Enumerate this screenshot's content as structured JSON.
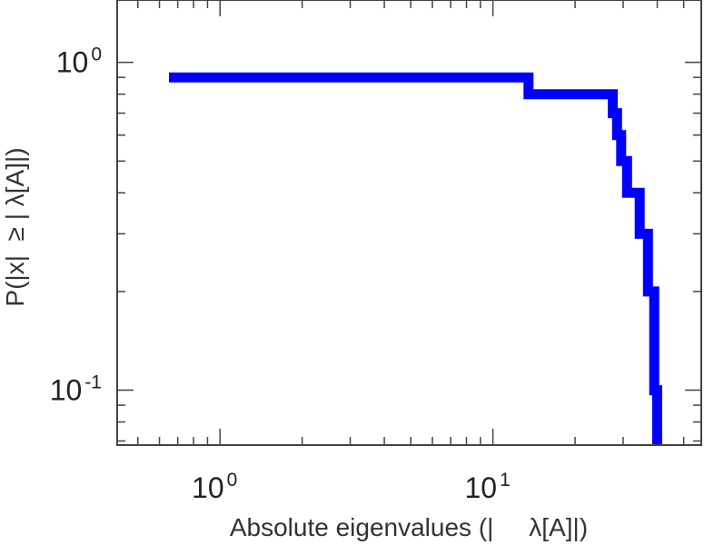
{
  "chart_data": {
    "type": "line",
    "title": "",
    "xlabel": "Absolute eigenvalues (|     λ[A]|)",
    "ylabel": "P(|x|  ≥ | λ[A]|)",
    "xscale": "log",
    "yscale": "log",
    "xlim": [
      0.42,
      58
    ],
    "ylim": [
      0.068,
      1.55
    ],
    "grid": false,
    "legend": "none",
    "x_ticks": [
      {
        "value": 1,
        "base": "10",
        "exp": "0"
      },
      {
        "value": 10,
        "base": "10",
        "exp": "1"
      }
    ],
    "y_ticks": [
      {
        "value": 0.1,
        "base": "10",
        "exp": "-1"
      },
      {
        "value": 1,
        "base": "10",
        "exp": "0"
      }
    ],
    "series": [
      {
        "color": "#0000ff",
        "step": true,
        "x": [
          0.65,
          13.5,
          27.5,
          28.5,
          29.5,
          31.0,
          34.5,
          37.0,
          39.0,
          40.0
        ],
        "y": [
          0.9,
          0.8,
          0.7,
          0.6,
          0.5,
          0.4,
          0.3,
          0.2,
          0.1,
          0.068
        ]
      }
    ]
  }
}
